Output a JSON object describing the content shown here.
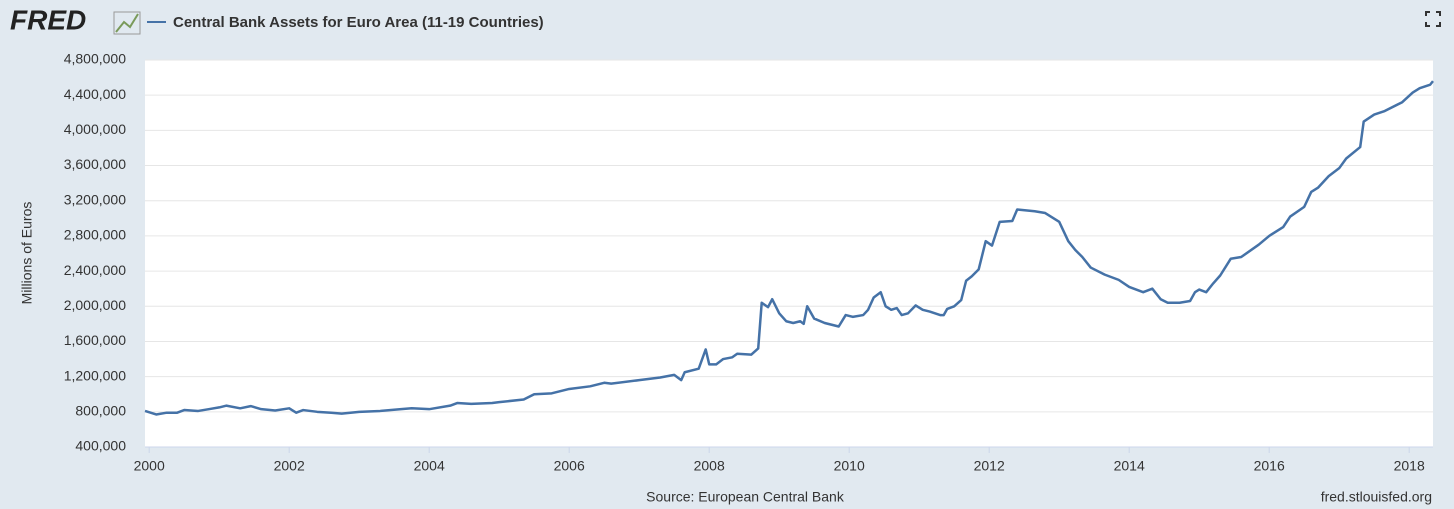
{
  "logo": "FRED",
  "source": "Source: European Central Bank",
  "site": "fred.stlouisfed.org",
  "chart_data": {
    "type": "line",
    "ylabel": "Millions of Euros",
    "xlim": [
      1999.94,
      2018.34
    ],
    "ylim": [
      400000,
      4800000
    ],
    "xticks": [
      2000,
      2002,
      2004,
      2006,
      2008,
      2010,
      2012,
      2014,
      2016,
      2018
    ],
    "yticks": [
      {
        "value": 400000,
        "label": "400,000"
      },
      {
        "value": 800000,
        "label": "800,000"
      },
      {
        "value": 1200000,
        "label": "1,200,000"
      },
      {
        "value": 1600000,
        "label": "1,600,000"
      },
      {
        "value": 2000000,
        "label": "2,000,000"
      },
      {
        "value": 2400000,
        "label": "2,400,000"
      },
      {
        "value": 2800000,
        "label": "2,800,000"
      },
      {
        "value": 3200000,
        "label": "3,200,000"
      },
      {
        "value": 3600000,
        "label": "3,600,000"
      },
      {
        "value": 4000000,
        "label": "4,000,000"
      },
      {
        "value": 4400000,
        "label": "4,400,000"
      },
      {
        "value": 4800000,
        "label": "4,800,000"
      }
    ],
    "grid": true,
    "series": [
      {
        "name": "Central Bank Assets for Euro Area (11-19 Countries)",
        "color": "#4572a7",
        "x": [
          1999.94,
          2000.1,
          2000.25,
          2000.4,
          2000.5,
          2000.7,
          2000.85,
          2001.0,
          2001.1,
          2001.3,
          2001.45,
          2001.6,
          2001.8,
          2002.0,
          2002.1,
          2002.2,
          2002.4,
          2002.6,
          2002.75,
          2003.0,
          2003.3,
          2003.6,
          2003.75,
          2004.0,
          2004.3,
          2004.4,
          2004.6,
          2004.9,
          2005.0,
          2005.35,
          2005.5,
          2005.75,
          2006.0,
          2006.3,
          2006.5,
          2006.6,
          2007.0,
          2007.3,
          2007.5,
          2007.6,
          2007.65,
          2007.85,
          2007.95,
          2008.0,
          2008.1,
          2008.2,
          2008.33,
          2008.4,
          2008.6,
          2008.7,
          2008.75,
          2008.84,
          2008.9,
          2009.0,
          2009.1,
          2009.2,
          2009.3,
          2009.35,
          2009.4,
          2009.5,
          2009.65,
          2009.75,
          2009.85,
          2009.95,
          2010.05,
          2010.2,
          2010.27,
          2010.35,
          2010.45,
          2010.52,
          2010.6,
          2010.68,
          2010.75,
          2010.84,
          2010.95,
          2011.05,
          2011.15,
          2011.3,
          2011.35,
          2011.4,
          2011.5,
          2011.6,
          2011.67,
          2011.75,
          2011.85,
          2011.95,
          2012.04,
          2012.15,
          2012.33,
          2012.4,
          2012.65,
          2012.8,
          2013.0,
          2013.13,
          2013.23,
          2013.33,
          2013.45,
          2013.65,
          2013.85,
          2014.0,
          2014.2,
          2014.33,
          2014.45,
          2014.55,
          2014.72,
          2014.87,
          2014.94,
          2015.0,
          2015.1,
          2015.2,
          2015.3,
          2015.45,
          2015.6,
          2015.85,
          2016.0,
          2016.2,
          2016.3,
          2016.5,
          2016.6,
          2016.7,
          2016.85,
          2017.0,
          2017.1,
          2017.3,
          2017.35,
          2017.5,
          2017.65,
          2017.9,
          2018.05,
          2018.15,
          2018.3,
          2018.34
        ],
        "values": [
          810000,
          770000,
          790000,
          790000,
          820000,
          810000,
          830000,
          850000,
          870000,
          840000,
          865000,
          830000,
          815000,
          840000,
          790000,
          820000,
          800000,
          790000,
          780000,
          800000,
          810000,
          830000,
          840000,
          830000,
          870000,
          900000,
          890000,
          900000,
          910000,
          940000,
          1000000,
          1010000,
          1060000,
          1090000,
          1130000,
          1120000,
          1160000,
          1190000,
          1220000,
          1160000,
          1250000,
          1290000,
          1510000,
          1340000,
          1340000,
          1400000,
          1420000,
          1460000,
          1450000,
          1520000,
          2040000,
          1990000,
          2080000,
          1920000,
          1830000,
          1810000,
          1830000,
          1800000,
          2000000,
          1860000,
          1810000,
          1790000,
          1770000,
          1900000,
          1880000,
          1900000,
          1960000,
          2100000,
          2160000,
          2000000,
          1960000,
          1980000,
          1900000,
          1920000,
          2010000,
          1960000,
          1940000,
          1900000,
          1900000,
          1970000,
          2000000,
          2070000,
          2290000,
          2340000,
          2420000,
          2740000,
          2690000,
          2960000,
          2970000,
          3100000,
          3080000,
          3060000,
          2960000,
          2740000,
          2640000,
          2560000,
          2440000,
          2360000,
          2300000,
          2220000,
          2160000,
          2200000,
          2080000,
          2040000,
          2040000,
          2060000,
          2160000,
          2190000,
          2160000,
          2260000,
          2350000,
          2540000,
          2560000,
          2700000,
          2800000,
          2900000,
          3020000,
          3130000,
          3300000,
          3350000,
          3480000,
          3570000,
          3680000,
          3810000,
          4100000,
          4180000,
          4220000,
          4320000,
          4430000,
          4480000,
          4520000,
          4560000
        ]
      }
    ]
  }
}
